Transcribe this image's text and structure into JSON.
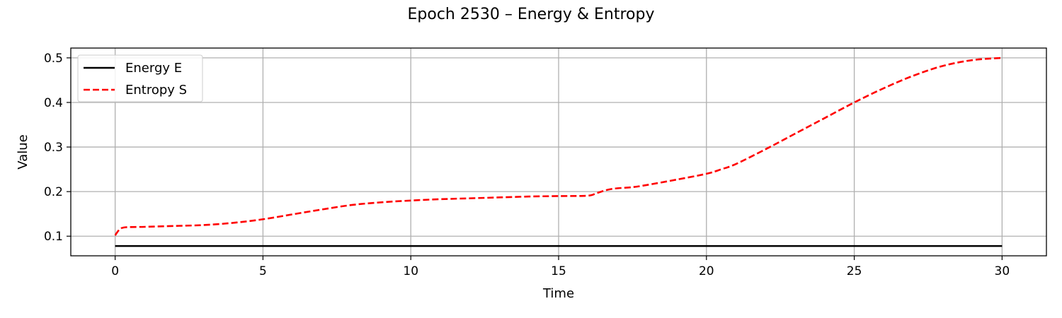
{
  "chart_data": {
    "type": "line",
    "title": "Epoch 2530 – Energy & Entropy",
    "xlabel": "Time",
    "ylabel": "Value",
    "xlim": [
      -1.5,
      31.5
    ],
    "ylim": [
      0.056,
      0.522
    ],
    "xticks": [
      0,
      5,
      10,
      15,
      20,
      25,
      30
    ],
    "yticks": [
      0.1,
      0.2,
      0.3,
      0.4,
      0.5
    ],
    "grid": true,
    "legend_position": "top-left",
    "series": [
      {
        "name": "Energy E",
        "color": "#000000",
        "style": "solid",
        "x": [
          0,
          5,
          10,
          15,
          20,
          25,
          30
        ],
        "y": [
          0.078,
          0.078,
          0.078,
          0.078,
          0.078,
          0.078,
          0.078
        ]
      },
      {
        "name": "Entropy S",
        "color": "#ff0000",
        "style": "dashed",
        "x": [
          0,
          0.15,
          0.35,
          1,
          2,
          3,
          4,
          5,
          6,
          7,
          8,
          9,
          10,
          11,
          12,
          13,
          14,
          15,
          16,
          16.3,
          16.8,
          17.5,
          18,
          19,
          20,
          20.5,
          21,
          22,
          23,
          24,
          25,
          26,
          27,
          28,
          29,
          30
        ],
        "y": [
          0.102,
          0.115,
          0.12,
          0.121,
          0.123,
          0.125,
          0.13,
          0.138,
          0.149,
          0.16,
          0.17,
          0.176,
          0.18,
          0.183,
          0.185,
          0.187,
          0.189,
          0.19,
          0.191,
          0.197,
          0.206,
          0.21,
          0.215,
          0.227,
          0.24,
          0.25,
          0.262,
          0.295,
          0.33,
          0.365,
          0.4,
          0.432,
          0.46,
          0.482,
          0.495,
          0.5
        ]
      }
    ]
  }
}
